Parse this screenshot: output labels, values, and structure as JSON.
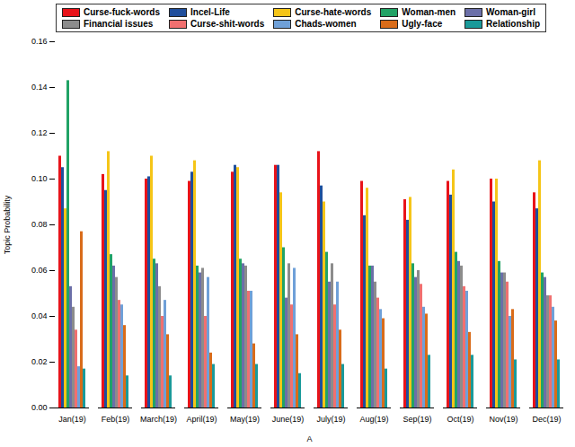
{
  "chart_data": {
    "type": "bar",
    "x_label": "A",
    "y_label": "Topic Probability",
    "categories": [
      "Jan(19)",
      "Feb(19)",
      "March(19)",
      "April(19)",
      "May(19)",
      "June(19)",
      "July(19)",
      "Aug(19)",
      "Sep(19)",
      "Oct(19)",
      "Nov(19)",
      "Dec(19)"
    ],
    "series": [
      {
        "name": "Curse-fuck-words",
        "color": "#e8131a",
        "values": [
          0.11,
          0.102,
          0.1,
          0.099,
          0.103,
          0.106,
          0.112,
          0.099,
          0.091,
          0.099,
          0.1,
          0.094
        ]
      },
      {
        "name": "Incel-Life",
        "color": "#1f4e9c",
        "values": [
          0.105,
          0.095,
          0.101,
          0.103,
          0.106,
          0.106,
          0.097,
          0.084,
          0.082,
          0.093,
          0.09,
          0.087
        ]
      },
      {
        "name": "Curse-hate-words",
        "color": "#f5c518",
        "values": [
          0.087,
          0.112,
          0.11,
          0.108,
          0.105,
          0.094,
          0.09,
          0.096,
          0.092,
          0.104,
          0.1,
          0.108
        ]
      },
      {
        "name": "Woman-men",
        "color": "#21a366",
        "values": [
          0.143,
          0.067,
          0.065,
          0.062,
          0.065,
          0.07,
          0.068,
          0.062,
          0.063,
          0.068,
          0.064,
          0.059
        ]
      },
      {
        "name": "Woman-girl",
        "color": "#6b6fa8",
        "values": [
          0.053,
          0.062,
          0.063,
          0.059,
          0.063,
          0.048,
          0.055,
          0.062,
          0.057,
          0.064,
          0.059,
          0.057
        ]
      },
      {
        "name": "Financial issues",
        "color": "#8c8c8c",
        "values": [
          0.044,
          0.057,
          0.053,
          0.061,
          0.062,
          0.063,
          0.063,
          0.055,
          0.06,
          0.062,
          0.059,
          0.049
        ]
      },
      {
        "name": "Curse-shit-words",
        "color": "#f07070",
        "values": [
          0.034,
          0.047,
          0.04,
          0.04,
          0.051,
          0.045,
          0.045,
          0.048,
          0.054,
          0.053,
          0.055,
          0.049
        ]
      },
      {
        "name": "Chads-women",
        "color": "#6fa0d8",
        "values": [
          0.018,
          0.045,
          0.047,
          0.057,
          0.051,
          0.061,
          0.055,
          0.043,
          0.044,
          0.051,
          0.04,
          0.044
        ]
      },
      {
        "name": "Ugly-face",
        "color": "#d96c1a",
        "values": [
          0.077,
          0.036,
          0.032,
          0.024,
          0.028,
          0.032,
          0.034,
          0.039,
          0.041,
          0.033,
          0.043,
          0.038
        ]
      },
      {
        "name": "Relationship",
        "color": "#1a9a9a",
        "values": [
          0.017,
          0.014,
          0.014,
          0.019,
          0.019,
          0.015,
          0.019,
          0.017,
          0.023,
          0.023,
          0.021,
          0.021
        ]
      }
    ],
    "ylim": [
      0,
      0.16
    ],
    "yticks": [
      {
        "value": 0,
        "label": "0.00"
      },
      {
        "value": 0.02,
        "label": "0.02"
      },
      {
        "value": 0.04,
        "label": "0.04"
      },
      {
        "value": 0.06,
        "label": "0.06"
      },
      {
        "value": 0.08,
        "label": "0.08"
      },
      {
        "value": 0.1,
        "label": "0.10"
      },
      {
        "value": 0.12,
        "label": "0.12"
      },
      {
        "value": 0.14,
        "label": "0.14"
      },
      {
        "value": 0.16,
        "label": "0.16"
      }
    ],
    "grid": false,
    "legend": "top-left"
  }
}
